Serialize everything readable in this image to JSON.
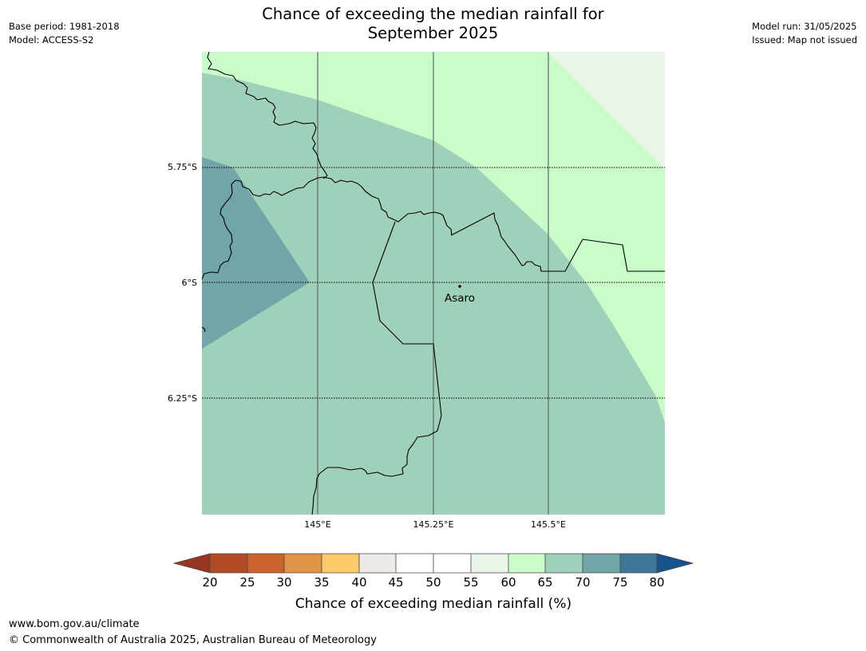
{
  "header": {
    "title_line1": "Chance of exceeding the median rainfall for",
    "title_line2": "September 2025",
    "base_period": "Base period: 1981-2018",
    "model": "Model: ACCESS-S2",
    "model_run": "Model run: 31/05/2025",
    "issued": "Issued: Map not issued"
  },
  "map": {
    "place_label": "Asaro",
    "lat_labels": [
      "5.75°S",
      "6°S",
      "6.25°S"
    ],
    "lon_labels": [
      "145°E",
      "145.25°E",
      "145.5°E"
    ],
    "region_colors": {
      "c55_60": "#eaf5ea",
      "c60_65": "#c9fcc9",
      "c65_70": "#9fd0b9",
      "c70_75": "#71a5a7"
    }
  },
  "colorbar": {
    "ticks": [
      "20",
      "25",
      "30",
      "35",
      "40",
      "45",
      "50",
      "55",
      "60",
      "65",
      "70",
      "75",
      "80"
    ],
    "label": "Chance of exceeding median rainfall (%)",
    "colors": {
      "under": "#973722",
      "c20_25": "#b24a26",
      "c25_30": "#cb632f",
      "c30_35": "#e29446",
      "c35_40": "#fdcb6a",
      "c40_45": "#ede9e6",
      "c45_50": "#ffffff",
      "c50_55": "#ffffff",
      "c55_60": "#eaf5ea",
      "c60_65": "#c9fcc9",
      "c65_70": "#9fd0b9",
      "c70_75": "#71a5a7",
      "c75_80": "#3f7799",
      "over": "#16538c"
    }
  },
  "footer": {
    "url": "www.bom.gov.au/climate",
    "copyright": "© Commonwealth of Australia 2025, Australian Bureau of Meteorology"
  }
}
